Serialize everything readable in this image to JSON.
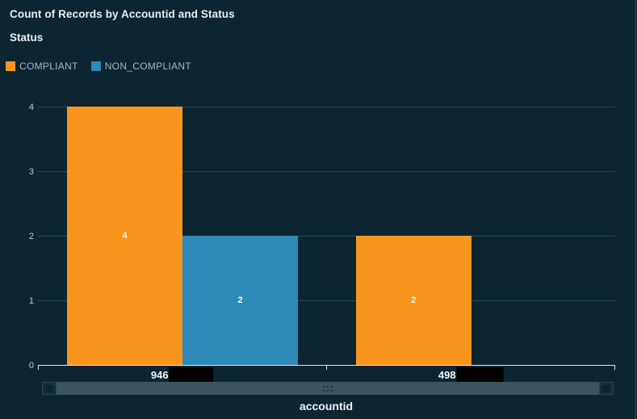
{
  "widget": {
    "title": "Count of Records by Accountid and Status",
    "legend": {
      "title": "Status",
      "items": [
        {
          "label": "COMPLIANT",
          "color": "#f8951d"
        },
        {
          "label": "NON_COMPLIANT",
          "color": "#2e8ab8"
        }
      ]
    },
    "x_axis": {
      "title": "accountid",
      "categories": [
        {
          "visible_text": "946",
          "redacted": true,
          "redaction_width": 55
        },
        {
          "visible_text": "498",
          "redacted": true,
          "redaction_width": 58
        }
      ]
    },
    "y_axis": {
      "tick_labels": [
        "0",
        "1",
        "2",
        "3",
        "4"
      ]
    },
    "scrollbar": {
      "left_button_icon": "grip-lines-icon",
      "right_button_icon": "grip-lines-icon",
      "thumb_icon": "drag-dots-icon"
    }
  },
  "colors": {
    "background": "#0c2531",
    "compliant": "#f8951d",
    "non_compliant": "#2e8ab8",
    "gridline": "#2e4b59",
    "axis_line": "#e3e7e8",
    "value_label": "#ffffff",
    "redaction_box": "#000000"
  },
  "chart_data": {
    "type": "bar",
    "title": "Count of Records by Accountid and Status",
    "categories": [
      "946 (partially redacted)",
      "498 (partially redacted)"
    ],
    "series": [
      {
        "name": "COMPLIANT",
        "color": "#f8951d",
        "values": [
          4,
          2
        ]
      },
      {
        "name": "NON_COMPLIANT",
        "color": "#2e8ab8",
        "values": [
          2,
          0
        ]
      }
    ],
    "xlabel": "accountid",
    "ylabel": "",
    "ylim": [
      0,
      4
    ],
    "y_ticks": [
      0,
      1,
      2,
      3,
      4
    ],
    "grid": true,
    "legend_position": "top-left",
    "value_labels": true
  }
}
